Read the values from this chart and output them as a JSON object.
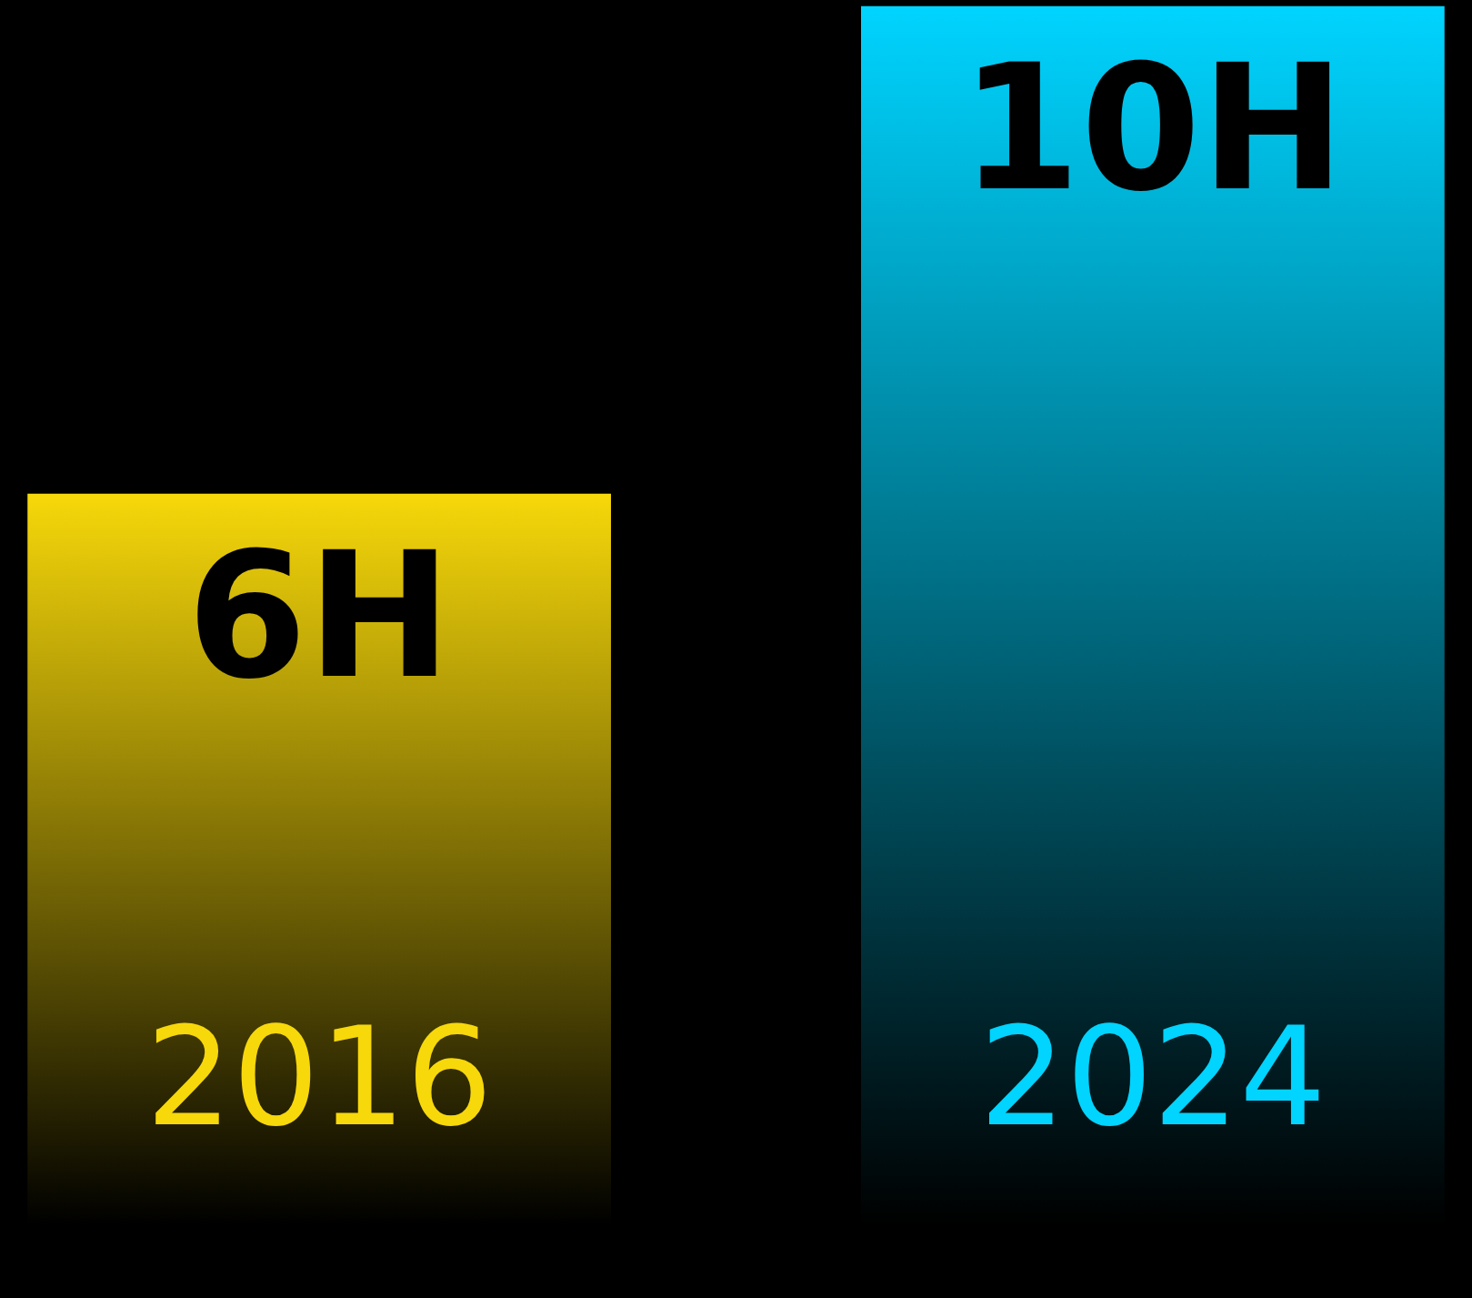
{
  "chart_data": {
    "type": "bar",
    "categories": [
      "2016",
      "2024"
    ],
    "values": [
      6,
      10
    ],
    "colors": [
      "#f7d80a",
      "#00d4ff"
    ],
    "value_labels": [
      "6H",
      "10H"
    ]
  }
}
